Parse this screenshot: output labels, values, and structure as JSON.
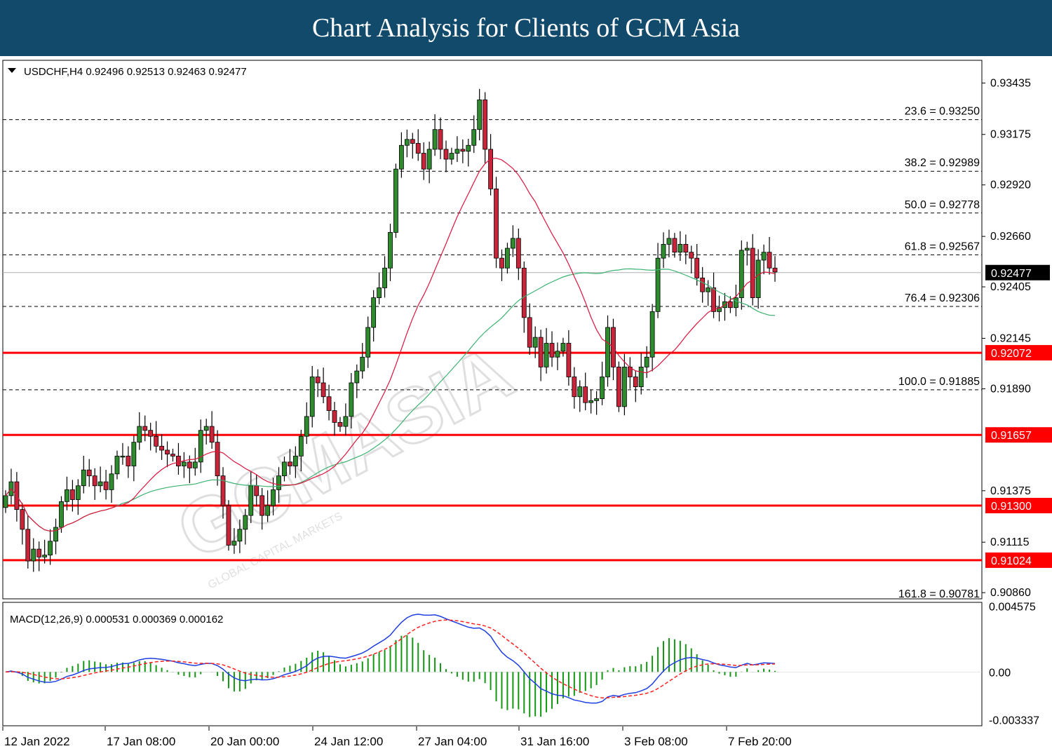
{
  "banner": {
    "title": "Chart Analysis for Clients of GCM Asia"
  },
  "watermark": {
    "brand": "GCMASIA",
    "tagline": "GLOBAL CAPITAL MARKETS"
  },
  "colors": {
    "bull_candle": "#2e8b2e",
    "bear_candle": "#c8253a",
    "ma_fast": "#dc143c",
    "ma_slow": "#3cb371",
    "support_resistance": "#ff0000",
    "macd_line": "#1f3fe0",
    "signal_line": "#ff2020",
    "histogram": "#149614"
  },
  "chart_data": [
    {
      "type": "candlestick",
      "header": "USDCHF,H4  0.92496 0.92513 0.92463 0.92477",
      "symbol": "USDCHF",
      "timeframe": "H4",
      "ohlc_last": [
        0.92496,
        0.92513,
        0.92463,
        0.92477
      ],
      "ylim": [
        0.9085,
        0.935
      ],
      "y_ticks": [
        "0.93435",
        "0.93175",
        "0.92920",
        "0.92660",
        "0.92405",
        "0.92145",
        "0.91890",
        "0.91375",
        "0.91115",
        "0.90860"
      ],
      "x_ticks": [
        "12 Jan 2022",
        "17 Jan 08:00",
        "20 Jan 00:00",
        "24 Jan 12:00",
        "27 Jan 04:00",
        "31 Jan 16:00",
        "3 Feb 08:00",
        "7 Feb 20:00"
      ],
      "current_price": {
        "label": "0.92477",
        "value": 0.92477
      },
      "fibonacci_levels": [
        {
          "label": "23.6 = 0.93250",
          "value": 0.9325
        },
        {
          "label": "38.2 = 0.92989",
          "value": 0.92989
        },
        {
          "label": "50.0 = 0.92778",
          "value": 0.92778
        },
        {
          "label": "61.8 = 0.92567",
          "value": 0.92567
        },
        {
          "label": "76.4 = 0.92306",
          "value": 0.92306
        },
        {
          "label": "100.0 = 0.91885",
          "value": 0.91885
        },
        {
          "label": "161.8 = 0.90781",
          "value": 0.90781
        }
      ],
      "support_resistance": [
        {
          "label": "0.92072",
          "value": 0.92072
        },
        {
          "label": "0.91657",
          "value": 0.91657
        },
        {
          "label": "0.91300",
          "value": 0.913
        },
        {
          "label": "0.91024",
          "value": 0.91024
        }
      ],
      "closes": [
        0.9135,
        0.9142,
        0.9128,
        0.9118,
        0.9102,
        0.9108,
        0.9104,
        0.9105,
        0.9112,
        0.9119,
        0.9132,
        0.9138,
        0.9133,
        0.914,
        0.9148,
        0.9145,
        0.914,
        0.9142,
        0.9138,
        0.9146,
        0.9155,
        0.9155,
        0.915,
        0.9162,
        0.917,
        0.9168,
        0.9165,
        0.916,
        0.9158,
        0.9156,
        0.9155,
        0.915,
        0.9152,
        0.9149,
        0.9152,
        0.9168,
        0.917,
        0.9162,
        0.9145,
        0.913,
        0.911,
        0.9112,
        0.9118,
        0.9125,
        0.914,
        0.9135,
        0.9125,
        0.913,
        0.9138,
        0.9145,
        0.9152,
        0.915,
        0.9155,
        0.9165,
        0.9175,
        0.9195,
        0.9192,
        0.9185,
        0.9178,
        0.9172,
        0.917,
        0.9175,
        0.9192,
        0.9198,
        0.9205,
        0.922,
        0.9235,
        0.924,
        0.925,
        0.9268,
        0.93,
        0.9312,
        0.9315,
        0.9313,
        0.9308,
        0.93,
        0.931,
        0.932,
        0.931,
        0.9305,
        0.9308,
        0.931,
        0.9309,
        0.9312,
        0.932,
        0.9335,
        0.931,
        0.929,
        0.9255,
        0.925,
        0.926,
        0.9265,
        0.925,
        0.9225,
        0.921,
        0.9215,
        0.92,
        0.9212,
        0.9205,
        0.9208,
        0.9212,
        0.9195,
        0.9185,
        0.919,
        0.9182,
        0.9183,
        0.9184,
        0.9195,
        0.922,
        0.92,
        0.918,
        0.92,
        0.9195,
        0.919,
        0.92,
        0.9205,
        0.9228,
        0.9255,
        0.9262,
        0.9265,
        0.9258,
        0.9262,
        0.9258,
        0.9255,
        0.9245,
        0.9238,
        0.924,
        0.9228,
        0.923,
        0.9233,
        0.923,
        0.9235,
        0.9259,
        0.926,
        0.9235,
        0.9254,
        0.9258,
        0.925,
        0.9248
      ]
    },
    {
      "type": "macd",
      "header": "MACD(12,26,9) 0.000531 0.000369 0.000162",
      "params": [
        12,
        26,
        9
      ],
      "values": {
        "macd": 0.000531,
        "signal": 0.000369,
        "histogram": 0.000162
      },
      "ylim": [
        -0.0037,
        0.0048
      ],
      "y_ticks": [
        "0.004575",
        "0.00",
        "-0.003337"
      ]
    }
  ]
}
